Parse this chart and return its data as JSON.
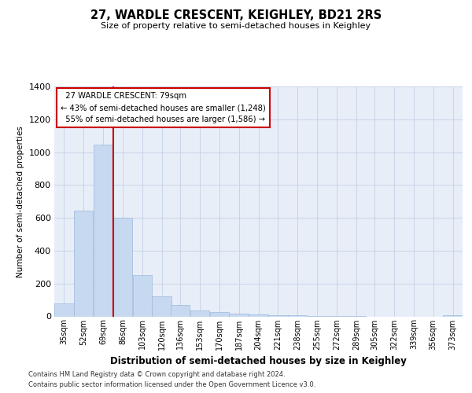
{
  "title": "27, WARDLE CRESCENT, KEIGHLEY, BD21 2RS",
  "subtitle": "Size of property relative to semi-detached houses in Keighley",
  "xlabel": "Distribution of semi-detached houses by size in Keighley",
  "ylabel": "Number of semi-detached properties",
  "footnote1": "Contains HM Land Registry data © Crown copyright and database right 2024.",
  "footnote2": "Contains public sector information licensed under the Open Government Licence v3.0.",
  "property_label": "27 WARDLE CRESCENT: 79sqm",
  "smaller_text": "← 43% of semi-detached houses are smaller (1,248)",
  "larger_text": "55% of semi-detached houses are larger (1,586) →",
  "vline_color": "#cc0000",
  "bar_facecolor": "#c6d9f1",
  "bar_edgecolor": "#9db8d9",
  "grid_color": "#c8d4e8",
  "bg_color": "#e8eef8",
  "categories": [
    "35sqm",
    "52sqm",
    "69sqm",
    "86sqm",
    "103sqm",
    "120sqm",
    "136sqm",
    "153sqm",
    "170sqm",
    "187sqm",
    "204sqm",
    "221sqm",
    "238sqm",
    "255sqm",
    "272sqm",
    "289sqm",
    "305sqm",
    "322sqm",
    "339sqm",
    "356sqm",
    "373sqm"
  ],
  "bin_lefts": [
    35,
    52,
    69,
    86,
    103,
    120,
    136,
    153,
    170,
    187,
    204,
    221,
    238,
    255,
    272,
    289,
    305,
    322,
    339,
    356,
    373
  ],
  "bin_width": 17,
  "values": [
    80,
    645,
    1047,
    600,
    250,
    120,
    68,
    38,
    28,
    18,
    10,
    8,
    5,
    3,
    2,
    1,
    0,
    0,
    0,
    0,
    8
  ],
  "ylim": [
    0,
    1400
  ],
  "yticks": [
    0,
    200,
    400,
    600,
    800,
    1000,
    1200,
    1400
  ],
  "vline_x": 86
}
